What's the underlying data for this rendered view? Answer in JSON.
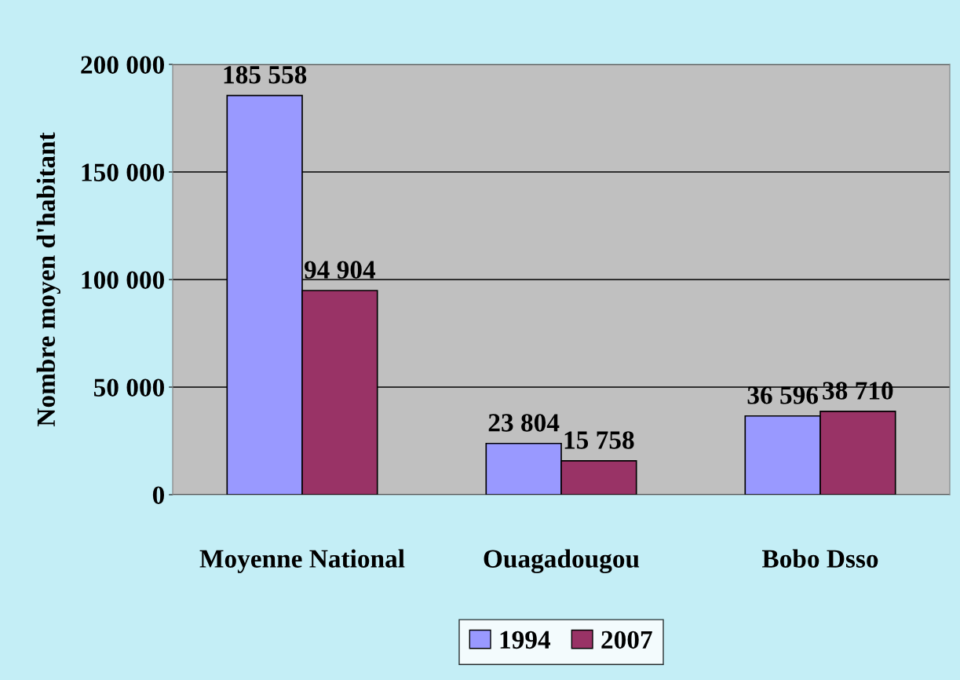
{
  "chart_data": {
    "type": "bar",
    "ylabel": "Nombre moyen d'habitant",
    "categories": [
      "Moyenne National",
      "Ouagadougou",
      "Bobo Dsso"
    ],
    "series": [
      {
        "name": "1994",
        "color": "#9999ff",
        "values": [
          185558,
          23804,
          36596
        ],
        "value_labels": [
          "185 558",
          "23 804",
          "36 596"
        ]
      },
      {
        "name": "2007",
        "color": "#993366",
        "values": [
          94904,
          15758,
          38710
        ],
        "value_labels": [
          "94 904",
          "15 758",
          "38 710"
        ]
      }
    ],
    "ylim": [
      0,
      200000
    ],
    "yticks": [
      0,
      {
        "value": 50000,
        "label": "50 000"
      },
      {
        "value": 100000,
        "label": "100 000"
      },
      {
        "value": 150000,
        "label": "150 000"
      },
      {
        "value": 200000,
        "label": "200 000"
      }
    ],
    "grid": "y",
    "legend": "bottom"
  }
}
